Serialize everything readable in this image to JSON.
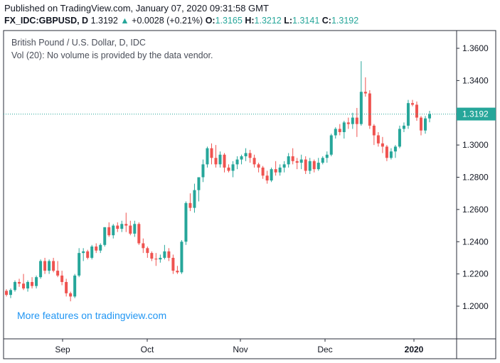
{
  "header": {
    "published": "Published on TradingView.com, January 07, 2020 09:31:58 GMT",
    "symbol": "FX_IDC:GBPUSD, D",
    "last": "1.3192",
    "change_arrow": "▲",
    "change": "+0.0028 (+0.21%)",
    "o_label": "O:",
    "o_value": "1.3165",
    "h_label": "H:",
    "h_value": "1.3212",
    "l_label": "L:",
    "l_value": "1.3141",
    "c_label": "C:",
    "c_value": "1.3192"
  },
  "overlay": {
    "title": "British Pound / U.S. Dollar, D, IDC",
    "volume_note": "Vol (20): No volume is provided by the data vendor.",
    "promo": "More features on tradingview.com"
  },
  "colors": {
    "up": "#26a69a",
    "down": "#ef5350",
    "price_line": "#26a69a",
    "promo": "#2196f3"
  },
  "chart_data": {
    "type": "candlestick",
    "title": "British Pound / U.S. Dollar, D, IDC",
    "ylim": [
      1.18,
      1.37
    ],
    "y_ticks": [
      "1.2000",
      "1.2200",
      "1.2400",
      "1.2600",
      "1.2800",
      "1.3000",
      "1.3200",
      "1.3400",
      "1.3600"
    ],
    "x_labels": [
      "Sep",
      "Oct",
      "Nov",
      "Dec",
      "2020"
    ],
    "current_price": "1.3192",
    "candles": [
      [
        1.2095,
        1.2105,
        1.206,
        1.207
      ],
      [
        1.207,
        1.211,
        1.205,
        1.21
      ],
      [
        1.21,
        1.216,
        1.209,
        1.215
      ],
      [
        1.215,
        1.217,
        1.212,
        1.214
      ],
      [
        1.214,
        1.22,
        1.21,
        1.211
      ],
      [
        1.211,
        1.216,
        1.209,
        1.215
      ],
      [
        1.215,
        1.218,
        1.211,
        1.2125
      ],
      [
        1.2125,
        1.219,
        1.211,
        1.218
      ],
      [
        1.218,
        1.229,
        1.217,
        1.228
      ],
      [
        1.228,
        1.23,
        1.22,
        1.222
      ],
      [
        1.222,
        1.229,
        1.22,
        1.228
      ],
      [
        1.228,
        1.23,
        1.221,
        1.222
      ],
      [
        1.222,
        1.228,
        1.218,
        1.219
      ],
      [
        1.219,
        1.222,
        1.213,
        1.215
      ],
      [
        1.215,
        1.217,
        1.206,
        1.208
      ],
      [
        1.208,
        1.209,
        1.203,
        1.206
      ],
      [
        1.206,
        1.22,
        1.205,
        1.219
      ],
      [
        1.219,
        1.236,
        1.218,
        1.233
      ],
      [
        1.233,
        1.236,
        1.228,
        1.234
      ],
      [
        1.234,
        1.235,
        1.229,
        1.23
      ],
      [
        1.23,
        1.238,
        1.229,
        1.237
      ],
      [
        1.237,
        1.239,
        1.233,
        1.2345
      ],
      [
        1.2345,
        1.239,
        1.233,
        1.238
      ],
      [
        1.238,
        1.249,
        1.237,
        1.249
      ],
      [
        1.249,
        1.252,
        1.243,
        1.244
      ],
      [
        1.244,
        1.251,
        1.242,
        1.25
      ],
      [
        1.25,
        1.252,
        1.246,
        1.248
      ],
      [
        1.248,
        1.253,
        1.246,
        1.251
      ],
      [
        1.251,
        1.258,
        1.246,
        1.25
      ],
      [
        1.25,
        1.253,
        1.244,
        1.245
      ],
      [
        1.245,
        1.253,
        1.243,
        1.251
      ],
      [
        1.251,
        1.252,
        1.238,
        1.239
      ],
      [
        1.239,
        1.242,
        1.233,
        1.236
      ],
      [
        1.236,
        1.237,
        1.23,
        1.233
      ],
      [
        1.233,
        1.234,
        1.228,
        1.2295
      ],
      [
        1.2295,
        1.233,
        1.225,
        1.229
      ],
      [
        1.229,
        1.232,
        1.227,
        1.23
      ],
      [
        1.23,
        1.238,
        1.229,
        1.234
      ],
      [
        1.234,
        1.236,
        1.228,
        1.23
      ],
      [
        1.23,
        1.232,
        1.22,
        1.222
      ],
      [
        1.222,
        1.225,
        1.22,
        1.221
      ],
      [
        1.221,
        1.241,
        1.22,
        1.24
      ],
      [
        1.24,
        1.265,
        1.238,
        1.264
      ],
      [
        1.264,
        1.27,
        1.259,
        1.261
      ],
      [
        1.261,
        1.276,
        1.258,
        1.272
      ],
      [
        1.272,
        1.28,
        1.265,
        1.28
      ],
      [
        1.28,
        1.291,
        1.277,
        1.288
      ],
      [
        1.288,
        1.299,
        1.286,
        1.298
      ],
      [
        1.298,
        1.301,
        1.288,
        1.292
      ],
      [
        1.292,
        1.3,
        1.286,
        1.288
      ],
      [
        1.288,
        1.296,
        1.286,
        1.294
      ],
      [
        1.294,
        1.295,
        1.283,
        1.286
      ],
      [
        1.286,
        1.288,
        1.283,
        1.284
      ],
      [
        1.284,
        1.29,
        1.28,
        1.288
      ],
      [
        1.288,
        1.293,
        1.285,
        1.291
      ],
      [
        1.291,
        1.294,
        1.288,
        1.293
      ],
      [
        1.293,
        1.298,
        1.29,
        1.295
      ],
      [
        1.295,
        1.297,
        1.289,
        1.292
      ],
      [
        1.292,
        1.294,
        1.286,
        1.288
      ],
      [
        1.288,
        1.289,
        1.283,
        1.286
      ],
      [
        1.286,
        1.287,
        1.279,
        1.281
      ],
      [
        1.281,
        1.284,
        1.276,
        1.278
      ],
      [
        1.278,
        1.286,
        1.277,
        1.285
      ],
      [
        1.285,
        1.29,
        1.281,
        1.283
      ],
      [
        1.283,
        1.288,
        1.281,
        1.286
      ],
      [
        1.286,
        1.29,
        1.283,
        1.288
      ],
      [
        1.288,
        1.295,
        1.286,
        1.293
      ],
      [
        1.293,
        1.298,
        1.288,
        1.29
      ],
      [
        1.29,
        1.292,
        1.285,
        1.289
      ],
      [
        1.289,
        1.294,
        1.285,
        1.291
      ],
      [
        1.291,
        1.293,
        1.282,
        1.284
      ],
      [
        1.284,
        1.292,
        1.282,
        1.29
      ],
      [
        1.29,
        1.291,
        1.283,
        1.285
      ],
      [
        1.285,
        1.292,
        1.284,
        1.289
      ],
      [
        1.289,
        1.293,
        1.288,
        1.292
      ],
      [
        1.292,
        1.296,
        1.289,
        1.294
      ],
      [
        1.294,
        1.307,
        1.293,
        1.306
      ],
      [
        1.306,
        1.311,
        1.304,
        1.31
      ],
      [
        1.31,
        1.313,
        1.306,
        1.308
      ],
      [
        1.308,
        1.315,
        1.304,
        1.314
      ],
      [
        1.314,
        1.317,
        1.31,
        1.313
      ],
      [
        1.313,
        1.32,
        1.31,
        1.317
      ],
      [
        1.317,
        1.323,
        1.305,
        1.313
      ],
      [
        1.313,
        1.352,
        1.312,
        1.333
      ],
      [
        1.333,
        1.342,
        1.33,
        1.332
      ],
      [
        1.332,
        1.334,
        1.31,
        1.312
      ],
      [
        1.312,
        1.313,
        1.3,
        1.306
      ],
      [
        1.306,
        1.308,
        1.299,
        1.301
      ],
      [
        1.301,
        1.305,
        1.295,
        1.299
      ],
      [
        1.299,
        1.3,
        1.29,
        1.292
      ],
      [
        1.292,
        1.298,
        1.291,
        1.296
      ],
      [
        1.296,
        1.3,
        1.292,
        1.299
      ],
      [
        1.299,
        1.312,
        1.298,
        1.31
      ],
      [
        1.31,
        1.314,
        1.308,
        1.312
      ],
      [
        1.312,
        1.328,
        1.31,
        1.326
      ],
      [
        1.326,
        1.328,
        1.324,
        1.325
      ],
      [
        1.325,
        1.327,
        1.315,
        1.317
      ],
      [
        1.317,
        1.318,
        1.306,
        1.309
      ],
      [
        1.309,
        1.318,
        1.307,
        1.3165
      ],
      [
        1.3165,
        1.3212,
        1.3141,
        1.3192
      ]
    ]
  }
}
